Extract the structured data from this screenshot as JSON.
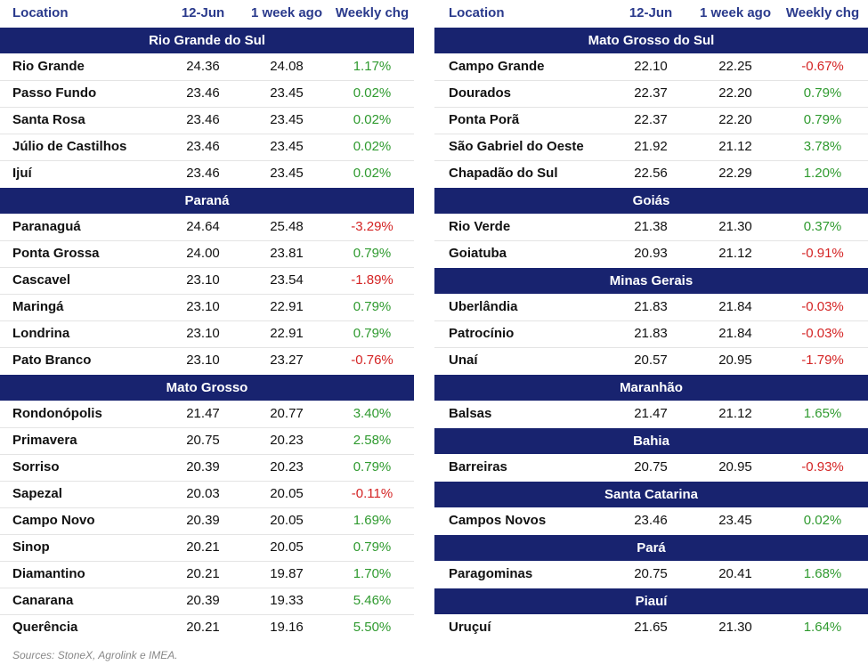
{
  "tables": [
    {
      "header": [
        "Location",
        "12-Jun",
        "1 week ago",
        "Weekly chg"
      ],
      "groups": [
        {
          "name": "Rio Grande do Sul",
          "rows": [
            [
              "Rio Grande",
              "24.36",
              "24.08",
              "1.17%"
            ],
            [
              "Passo Fundo",
              "23.46",
              "23.45",
              "0.02%"
            ],
            [
              "Santa Rosa",
              "23.46",
              "23.45",
              "0.02%"
            ],
            [
              "Júlio de Castilhos",
              "23.46",
              "23.45",
              "0.02%"
            ],
            [
              "Ijuí",
              "23.46",
              "23.45",
              "0.02%"
            ]
          ]
        },
        {
          "name": "Paraná",
          "rows": [
            [
              "Paranaguá",
              "24.64",
              "25.48",
              "-3.29%"
            ],
            [
              "Ponta Grossa",
              "24.00",
              "23.81",
              "0.79%"
            ],
            [
              "Cascavel",
              "23.10",
              "23.54",
              "-1.89%"
            ],
            [
              "Maringá",
              "23.10",
              "22.91",
              "0.79%"
            ],
            [
              "Londrina",
              "23.10",
              "22.91",
              "0.79%"
            ],
            [
              "Pato Branco",
              "23.10",
              "23.27",
              "-0.76%"
            ]
          ]
        },
        {
          "name": "Mato Grosso",
          "rows": [
            [
              "Rondonópolis",
              "21.47",
              "20.77",
              "3.40%"
            ],
            [
              "Primavera",
              "20.75",
              "20.23",
              "2.58%"
            ],
            [
              "Sorriso",
              "20.39",
              "20.23",
              "0.79%"
            ],
            [
              "Sapezal",
              "20.03",
              "20.05",
              "-0.11%"
            ],
            [
              "Campo Novo",
              "20.39",
              "20.05",
              "1.69%"
            ],
            [
              "Sinop",
              "20.21",
              "20.05",
              "0.79%"
            ],
            [
              "Diamantino",
              "20.21",
              "19.87",
              "1.70%"
            ],
            [
              "Canarana",
              "20.39",
              "19.33",
              "5.46%"
            ],
            [
              "Querência",
              "20.21",
              "19.16",
              "5.50%"
            ]
          ]
        }
      ]
    },
    {
      "header": [
        "Location",
        "12-Jun",
        "1 week ago",
        "Weekly chg"
      ],
      "groups": [
        {
          "name": "Mato Grosso do Sul",
          "rows": [
            [
              "Campo Grande",
              "22.10",
              "22.25",
              "-0.67%"
            ],
            [
              "Dourados",
              "22.37",
              "22.20",
              "0.79%"
            ],
            [
              "Ponta Porã",
              "22.37",
              "22.20",
              "0.79%"
            ],
            [
              "São Gabriel do Oeste",
              "21.92",
              "21.12",
              "3.78%"
            ],
            [
              "Chapadão do Sul",
              "22.56",
              "22.29",
              "1.20%"
            ]
          ]
        },
        {
          "name": "Goiás",
          "rows": [
            [
              "Rio Verde",
              "21.38",
              "21.30",
              "0.37%"
            ],
            [
              "Goiatuba",
              "20.93",
              "21.12",
              "-0.91%"
            ]
          ]
        },
        {
          "name": "Minas Gerais",
          "rows": [
            [
              "Uberlândia",
              "21.83",
              "21.84",
              "-0.03%"
            ],
            [
              "Patrocínio",
              "21.83",
              "21.84",
              "-0.03%"
            ],
            [
              "Unaí",
              "20.57",
              "20.95",
              "-1.79%"
            ]
          ]
        },
        {
          "name": "Maranhão",
          "rows": [
            [
              "Balsas",
              "21.47",
              "21.12",
              "1.65%"
            ]
          ]
        },
        {
          "name": "Bahia",
          "rows": [
            [
              "Barreiras",
              "20.75",
              "20.95",
              "-0.93%"
            ]
          ]
        },
        {
          "name": "Santa Catarina",
          "rows": [
            [
              "Campos Novos",
              "23.46",
              "23.45",
              "0.02%"
            ]
          ]
        },
        {
          "name": "Pará",
          "rows": [
            [
              "Paragominas",
              "20.75",
              "20.41",
              "1.68%"
            ]
          ]
        },
        {
          "name": "Piauí",
          "rows": [
            [
              "Uruçuí",
              "21.65",
              "21.30",
              "1.64%"
            ]
          ]
        }
      ]
    }
  ],
  "source": "Sources: StoneX, Agrolink e IMEA."
}
